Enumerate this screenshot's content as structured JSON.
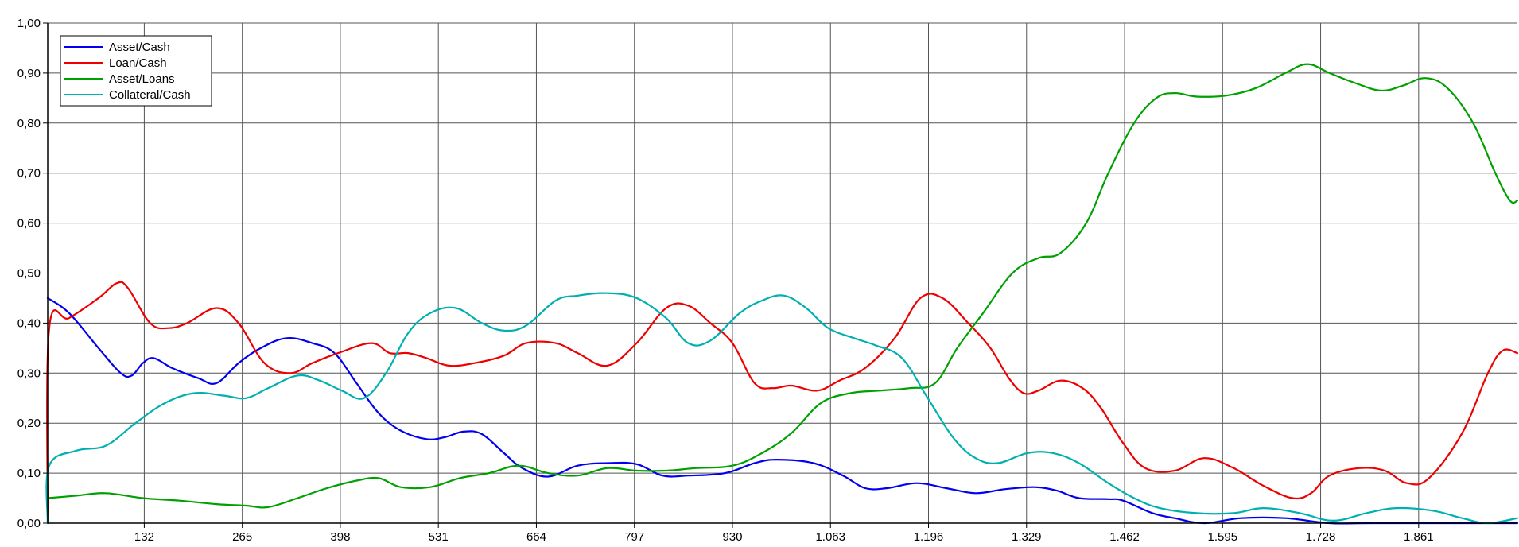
{
  "chart_data": {
    "type": "line",
    "title": "",
    "xlabel": "",
    "ylabel": "",
    "xlim": [
      1,
      1995
    ],
    "ylim": [
      0,
      1.0
    ],
    "x_ticks": [
      {
        "value": 132,
        "label": "132"
      },
      {
        "value": 265,
        "label": "265"
      },
      {
        "value": 398,
        "label": "398"
      },
      {
        "value": 531,
        "label": "531"
      },
      {
        "value": 664,
        "label": "664"
      },
      {
        "value": 797,
        "label": "797"
      },
      {
        "value": 930,
        "label": "930"
      },
      {
        "value": 1063,
        "label": "1.063"
      },
      {
        "value": 1196,
        "label": "1.196"
      },
      {
        "value": 1329,
        "label": "1.329"
      },
      {
        "value": 1462,
        "label": "1.462"
      },
      {
        "value": 1595,
        "label": "1.595"
      },
      {
        "value": 1728,
        "label": "1.728"
      },
      {
        "value": 1861,
        "label": "1.861"
      }
    ],
    "y_ticks": [
      {
        "value": 0.0,
        "label": "0,00"
      },
      {
        "value": 0.1,
        "label": "0,10"
      },
      {
        "value": 0.2,
        "label": "0,20"
      },
      {
        "value": 0.3,
        "label": "0,30"
      },
      {
        "value": 0.4,
        "label": "0,40"
      },
      {
        "value": 0.5,
        "label": "0,50"
      },
      {
        "value": 0.6,
        "label": "0,60"
      },
      {
        "value": 0.7,
        "label": "0,70"
      },
      {
        "value": 0.8,
        "label": "0,80"
      },
      {
        "value": 0.9,
        "label": "0,90"
      },
      {
        "value": 1.0,
        "label": "1,00"
      }
    ],
    "grid": true,
    "legend": "top-left",
    "series": [
      {
        "name": "Asset/Cash",
        "color": "#0000ee",
        "points": [
          [
            1,
            0.45
          ],
          [
            30,
            0.42
          ],
          [
            70,
            0.35
          ],
          [
            100,
            0.3
          ],
          [
            115,
            0.295
          ],
          [
            130,
            0.32
          ],
          [
            145,
            0.33
          ],
          [
            170,
            0.31
          ],
          [
            205,
            0.29
          ],
          [
            230,
            0.28
          ],
          [
            260,
            0.32
          ],
          [
            290,
            0.35
          ],
          [
            325,
            0.37
          ],
          [
            360,
            0.36
          ],
          [
            390,
            0.34
          ],
          [
            420,
            0.28
          ],
          [
            450,
            0.22
          ],
          [
            480,
            0.185
          ],
          [
            515,
            0.168
          ],
          [
            540,
            0.172
          ],
          [
            565,
            0.183
          ],
          [
            590,
            0.178
          ],
          [
            620,
            0.14
          ],
          [
            645,
            0.11
          ],
          [
            680,
            0.093
          ],
          [
            720,
            0.115
          ],
          [
            760,
            0.12
          ],
          [
            800,
            0.118
          ],
          [
            835,
            0.095
          ],
          [
            870,
            0.095
          ],
          [
            920,
            0.1
          ],
          [
            960,
            0.12
          ],
          [
            990,
            0.127
          ],
          [
            1040,
            0.12
          ],
          [
            1080,
            0.095
          ],
          [
            1110,
            0.07
          ],
          [
            1140,
            0.07
          ],
          [
            1180,
            0.08
          ],
          [
            1220,
            0.07
          ],
          [
            1260,
            0.06
          ],
          [
            1300,
            0.068
          ],
          [
            1340,
            0.072
          ],
          [
            1370,
            0.065
          ],
          [
            1400,
            0.05
          ],
          [
            1440,
            0.048
          ],
          [
            1460,
            0.045
          ],
          [
            1500,
            0.02
          ],
          [
            1530,
            0.01
          ],
          [
            1570,
            0.0
          ],
          [
            1620,
            0.01
          ],
          [
            1680,
            0.01
          ],
          [
            1740,
            0.0
          ],
          [
            1800,
            0.0
          ],
          [
            1995,
            0.0
          ]
        ]
      },
      {
        "name": "Loan/Cash",
        "color": "#ee0000",
        "points": [
          [
            1,
            0.0
          ],
          [
            3,
            0.39
          ],
          [
            30,
            0.41
          ],
          [
            70,
            0.45
          ],
          [
            95,
            0.48
          ],
          [
            110,
            0.47
          ],
          [
            140,
            0.4
          ],
          [
            165,
            0.39
          ],
          [
            190,
            0.4
          ],
          [
            230,
            0.43
          ],
          [
            260,
            0.4
          ],
          [
            295,
            0.32
          ],
          [
            330,
            0.3
          ],
          [
            360,
            0.32
          ],
          [
            395,
            0.34
          ],
          [
            440,
            0.36
          ],
          [
            465,
            0.34
          ],
          [
            490,
            0.34
          ],
          [
            515,
            0.33
          ],
          [
            545,
            0.315
          ],
          [
            580,
            0.32
          ],
          [
            620,
            0.335
          ],
          [
            650,
            0.36
          ],
          [
            690,
            0.36
          ],
          [
            720,
            0.34
          ],
          [
            760,
            0.315
          ],
          [
            800,
            0.36
          ],
          [
            840,
            0.43
          ],
          [
            870,
            0.435
          ],
          [
            900,
            0.4
          ],
          [
            930,
            0.36
          ],
          [
            960,
            0.28
          ],
          [
            985,
            0.27
          ],
          [
            1010,
            0.275
          ],
          [
            1045,
            0.265
          ],
          [
            1075,
            0.285
          ],
          [
            1110,
            0.31
          ],
          [
            1150,
            0.37
          ],
          [
            1185,
            0.45
          ],
          [
            1215,
            0.45
          ],
          [
            1250,
            0.4
          ],
          [
            1280,
            0.35
          ],
          [
            1305,
            0.29
          ],
          [
            1325,
            0.26
          ],
          [
            1345,
            0.265
          ],
          [
            1375,
            0.285
          ],
          [
            1405,
            0.27
          ],
          [
            1430,
            0.23
          ],
          [
            1460,
            0.16
          ],
          [
            1490,
            0.11
          ],
          [
            1530,
            0.105
          ],
          [
            1570,
            0.13
          ],
          [
            1610,
            0.11
          ],
          [
            1650,
            0.075
          ],
          [
            1690,
            0.05
          ],
          [
            1715,
            0.06
          ],
          [
            1740,
            0.095
          ],
          [
            1780,
            0.11
          ],
          [
            1815,
            0.105
          ],
          [
            1845,
            0.08
          ],
          [
            1875,
            0.09
          ],
          [
            1920,
            0.18
          ],
          [
            1955,
            0.3
          ],
          [
            1975,
            0.345
          ],
          [
            1995,
            0.34
          ]
        ]
      },
      {
        "name": "Asset/Loans",
        "color": "#00a000",
        "points": [
          [
            1,
            0.05
          ],
          [
            40,
            0.055
          ],
          [
            80,
            0.06
          ],
          [
            130,
            0.05
          ],
          [
            180,
            0.045
          ],
          [
            230,
            0.038
          ],
          [
            270,
            0.035
          ],
          [
            300,
            0.032
          ],
          [
            340,
            0.05
          ],
          [
            380,
            0.07
          ],
          [
            420,
            0.085
          ],
          [
            450,
            0.09
          ],
          [
            480,
            0.072
          ],
          [
            520,
            0.072
          ],
          [
            560,
            0.09
          ],
          [
            600,
            0.1
          ],
          [
            640,
            0.115
          ],
          [
            680,
            0.1
          ],
          [
            720,
            0.095
          ],
          [
            760,
            0.11
          ],
          [
            800,
            0.105
          ],
          [
            840,
            0.105
          ],
          [
            880,
            0.11
          ],
          [
            930,
            0.115
          ],
          [
            970,
            0.14
          ],
          [
            1010,
            0.18
          ],
          [
            1050,
            0.24
          ],
          [
            1090,
            0.26
          ],
          [
            1130,
            0.265
          ],
          [
            1170,
            0.27
          ],
          [
            1205,
            0.28
          ],
          [
            1235,
            0.35
          ],
          [
            1270,
            0.42
          ],
          [
            1310,
            0.5
          ],
          [
            1345,
            0.53
          ],
          [
            1375,
            0.54
          ],
          [
            1410,
            0.6
          ],
          [
            1440,
            0.7
          ],
          [
            1475,
            0.8
          ],
          [
            1505,
            0.85
          ],
          [
            1530,
            0.86
          ],
          [
            1560,
            0.853
          ],
          [
            1600,
            0.855
          ],
          [
            1640,
            0.87
          ],
          [
            1680,
            0.9
          ],
          [
            1710,
            0.918
          ],
          [
            1740,
            0.9
          ],
          [
            1775,
            0.88
          ],
          [
            1810,
            0.865
          ],
          [
            1840,
            0.875
          ],
          [
            1870,
            0.89
          ],
          [
            1900,
            0.87
          ],
          [
            1935,
            0.8
          ],
          [
            1965,
            0.7
          ],
          [
            1985,
            0.645
          ],
          [
            1995,
            0.645
          ]
        ]
      },
      {
        "name": "Collateral/Cash",
        "color": "#00b0b0",
        "points": [
          [
            1,
            0.0
          ],
          [
            3,
            0.115
          ],
          [
            40,
            0.145
          ],
          [
            80,
            0.155
          ],
          [
            120,
            0.2
          ],
          [
            160,
            0.24
          ],
          [
            200,
            0.26
          ],
          [
            240,
            0.255
          ],
          [
            270,
            0.25
          ],
          [
            300,
            0.27
          ],
          [
            340,
            0.295
          ],
          [
            370,
            0.285
          ],
          [
            400,
            0.265
          ],
          [
            430,
            0.25
          ],
          [
            460,
            0.3
          ],
          [
            490,
            0.38
          ],
          [
            520,
            0.42
          ],
          [
            555,
            0.43
          ],
          [
            590,
            0.4
          ],
          [
            620,
            0.385
          ],
          [
            650,
            0.395
          ],
          [
            690,
            0.445
          ],
          [
            720,
            0.455
          ],
          [
            760,
            0.46
          ],
          [
            800,
            0.45
          ],
          [
            840,
            0.41
          ],
          [
            870,
            0.36
          ],
          [
            900,
            0.365
          ],
          [
            940,
            0.42
          ],
          [
            970,
            0.445
          ],
          [
            1000,
            0.455
          ],
          [
            1030,
            0.43
          ],
          [
            1060,
            0.39
          ],
          [
            1095,
            0.37
          ],
          [
            1125,
            0.355
          ],
          [
            1160,
            0.33
          ],
          [
            1195,
            0.25
          ],
          [
            1230,
            0.17
          ],
          [
            1260,
            0.13
          ],
          [
            1290,
            0.12
          ],
          [
            1330,
            0.14
          ],
          [
            1365,
            0.14
          ],
          [
            1400,
            0.12
          ],
          [
            1440,
            0.08
          ],
          [
            1475,
            0.05
          ],
          [
            1510,
            0.03
          ],
          [
            1560,
            0.02
          ],
          [
            1610,
            0.02
          ],
          [
            1650,
            0.03
          ],
          [
            1700,
            0.02
          ],
          [
            1745,
            0.005
          ],
          [
            1790,
            0.02
          ],
          [
            1830,
            0.03
          ],
          [
            1880,
            0.025
          ],
          [
            1920,
            0.01
          ],
          [
            1955,
            0.0
          ],
          [
            1995,
            0.01
          ]
        ]
      }
    ]
  }
}
